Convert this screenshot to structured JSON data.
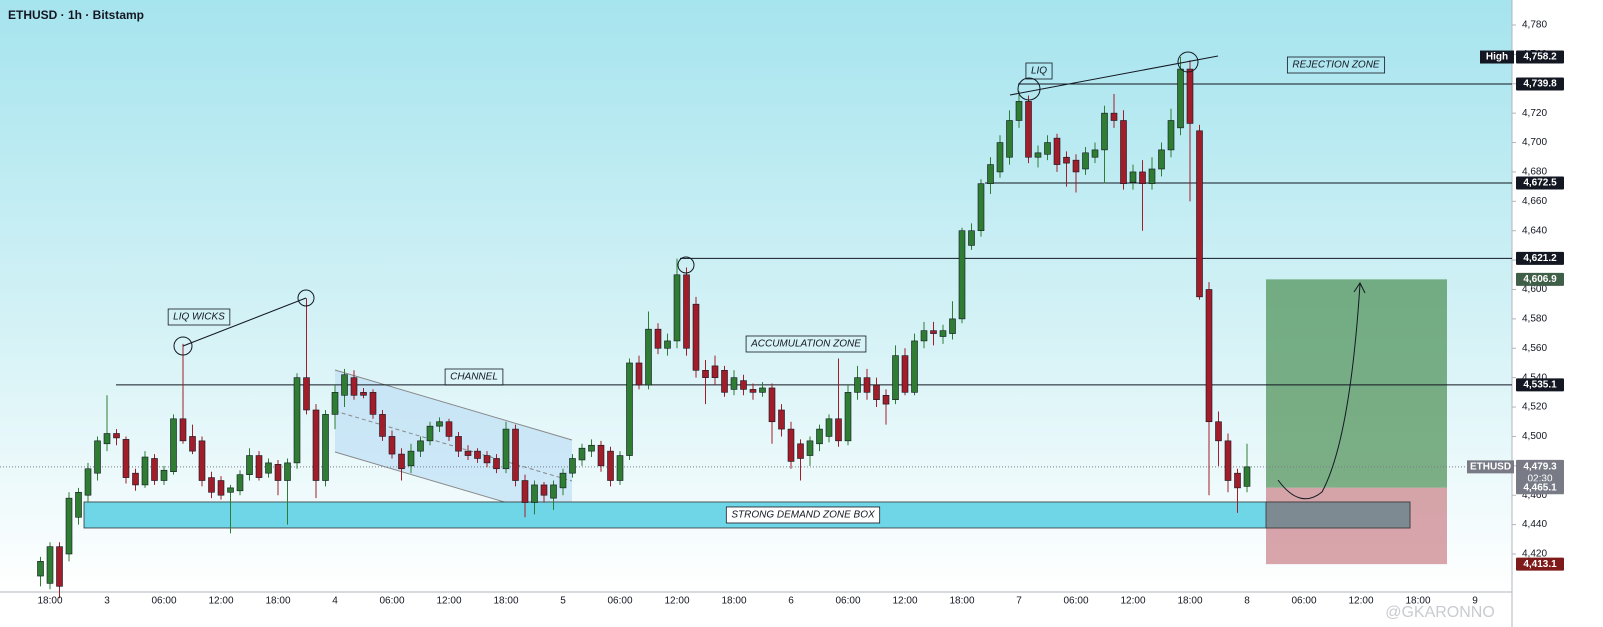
{
  "chart_data": {
    "type": "candlestick",
    "title": "ETHUSD · 1h · Bitstamp",
    "up_color": "#2e7d32",
    "down_color": "#a11d2a",
    "categories": [
      null,
      "18:00",
      null,
      null,
      null,
      null,
      null,
      "3",
      null,
      null,
      null,
      null,
      null,
      "06:00",
      null,
      null,
      null,
      null,
      null,
      "12:00",
      null,
      null,
      null,
      null,
      null,
      "18:00",
      null,
      null,
      null,
      null,
      null,
      "4",
      null,
      null,
      null,
      null,
      null,
      "06:00",
      null,
      null,
      null,
      null,
      null,
      "12:00",
      null,
      null,
      null,
      null,
      null,
      "18:00",
      null,
      null,
      null,
      null,
      null,
      "5",
      null,
      null,
      null,
      null,
      null,
      "06:00",
      null,
      null,
      null,
      null,
      null,
      "12:00",
      null,
      null,
      null,
      null,
      null,
      "18:00",
      null,
      null,
      null,
      null,
      null,
      "6",
      null,
      null,
      null,
      null,
      null,
      "06:00",
      null,
      null,
      null,
      null,
      null,
      "12:00",
      null,
      null,
      null,
      null,
      null,
      "18:00",
      null,
      null,
      null,
      null,
      null,
      "7",
      null,
      null,
      null,
      null,
      null,
      "06:00",
      null,
      null,
      null,
      null,
      null,
      "12:00",
      null,
      null,
      null,
      null,
      null,
      "18:00",
      null,
      null,
      null,
      null,
      null,
      "8",
      null,
      null,
      null,
      null,
      null,
      "06:00",
      null,
      null,
      null,
      null,
      null,
      "12:00",
      null,
      null,
      null,
      null,
      null,
      "18:00",
      null,
      null,
      null,
      null,
      null,
      "9",
      null,
      null,
      null
    ],
    "open": [
      4405,
      4400,
      4425,
      4420,
      4445,
      4460,
      4475,
      4495,
      4502,
      4498,
      4475,
      4467,
      4485,
      4470,
      4476,
      4512,
      4500,
      4497,
      4472,
      4470,
      4462,
      4463,
      4474,
      4487,
      4475,
      4481,
      4470,
      4482,
      4540,
      4518,
      4470,
      4515,
      4528,
      4540,
      4530,
      4530,
      4515,
      4500,
      4488,
      4480,
      4490,
      4497,
      4507,
      4510,
      4500,
      4490,
      4490,
      4487,
      4485,
      4478,
      4505,
      4470,
      4455,
      4467,
      4458,
      4465,
      4475,
      4484,
      4490,
      4494,
      4490,
      4470,
      4487,
      4550,
      4535,
      4573,
      4560,
      4565,
      4610,
      4590,
      4545,
      4548,
      4545,
      4532,
      4538,
      4532,
      4530,
      4533,
      4518,
      4505,
      4495,
      4487,
      4495,
      4500,
      4512,
      4497,
      4530,
      4540,
      4535,
      4528,
      4525,
      4555,
      4530,
      4565,
      4572,
      4568,
      4570,
      4580,
      4630,
      4640,
      4672,
      4680,
      4690,
      4715,
      4728,
      4690,
      4692,
      4703,
      4690,
      4688,
      4682,
      4690,
      4695,
      4720,
      4715,
      4673,
      4680,
      4672,
      4682,
      4695,
      4710,
      4750,
      4708,
      4600,
      4510,
      4497,
      4475,
      4466,
      null,
      null,
      null,
      null,
      null,
      null,
      null,
      null,
      null,
      null,
      null,
      null,
      null,
      null,
      null,
      null,
      null,
      null,
      null,
      null,
      null,
      null,
      null,
      null,
      null,
      null,
      null
    ],
    "high": [
      4418,
      4428,
      4428,
      4462,
      4465,
      4482,
      4500,
      4528,
      4505,
      4500,
      4478,
      4490,
      4488,
      4480,
      4515,
      4563,
      4508,
      4500,
      4476,
      4473,
      4467,
      4477,
      4492,
      4490,
      4485,
      4484,
      4485,
      4543,
      4594,
      4522,
      4518,
      4535,
      4546,
      4545,
      4533,
      4532,
      4518,
      4504,
      4492,
      4495,
      4500,
      4510,
      4513,
      4512,
      4503,
      4494,
      4492,
      4490,
      4488,
      4510,
      4508,
      4474,
      4470,
      4469,
      4470,
      4478,
      4488,
      4495,
      4498,
      4497,
      4493,
      4490,
      4553,
      4555,
      4585,
      4577,
      4570,
      4621,
      4615,
      4595,
      4552,
      4555,
      4548,
      4545,
      4542,
      4536,
      4537,
      4536,
      4522,
      4510,
      4498,
      4500,
      4508,
      4515,
      4553,
      4535,
      4548,
      4546,
      4540,
      4532,
      4562,
      4560,
      4570,
      4578,
      4578,
      4576,
      4592,
      4642,
      4645,
      4675,
      4690,
      4705,
      4722,
      4735,
      4732,
      4698,
      4705,
      4706,
      4694,
      4692,
      4697,
      4700,
      4725,
      4733,
      4722,
      4685,
      4688,
      4690,
      4700,
      4723,
      4758.2,
      4756,
      4712,
      4605,
      4517,
      4502,
      4478,
      4495,
      null,
      null,
      null,
      null,
      null,
      null,
      null,
      null,
      null,
      null,
      null,
      null,
      null,
      null,
      null,
      null,
      null,
      null,
      null,
      null,
      null,
      null,
      null,
      null,
      null,
      null,
      null
    ],
    "low": [
      4398,
      4396,
      4390,
      4415,
      4440,
      4455,
      4470,
      4490,
      4494,
      4468,
      4463,
      4465,
      4467,
      4467,
      4474,
      4495,
      4488,
      4466,
      4458,
      4457,
      4434,
      4460,
      4470,
      4470,
      4472,
      4460,
      4440,
      4478,
      4515,
      4458,
      4466,
      4505,
      4520,
      4525,
      4526,
      4512,
      4497,
      4485,
      4470,
      4475,
      4486,
      4494,
      4503,
      4497,
      4486,
      4484,
      4482,
      4479,
      4475,
      4475,
      4466,
      4445,
      4447,
      4455,
      4450,
      4460,
      4472,
      4480,
      4486,
      4476,
      4466,
      4467,
      4484,
      4532,
      4532,
      4556,
      4555,
      4560,
      4555,
      4540,
      4522,
      4535,
      4527,
      4528,
      4528,
      4525,
      4527,
      4495,
      4500,
      4478,
      4470,
      4480,
      4490,
      4496,
      4493,
      4494,
      4525,
      4525,
      4520,
      4508,
      4522,
      4528,
      4528,
      4560,
      4562,
      4563,
      4566,
      4577,
      4627,
      4636,
      4665,
      4676,
      4685,
      4710,
      4686,
      4683,
      4688,
      4680,
      4670,
      4666,
      4678,
      4686,
      4672,
      4710,
      4668,
      4668,
      4640,
      4668,
      4677,
      4690,
      4705,
      4660,
      4593,
      4460,
      4480,
      4462,
      4448,
      4462,
      null,
      null,
      null,
      null,
      null,
      null,
      null,
      null,
      null,
      null,
      null,
      null,
      null,
      null,
      null,
      null,
      null,
      null,
      null,
      null,
      null,
      null,
      null,
      null,
      null,
      null,
      null
    ],
    "close": [
      4415,
      4425,
      4398,
      4458,
      4462,
      4478,
      4497,
      4502,
      4499,
      4472,
      4467,
      4486,
      4470,
      4477,
      4512,
      4497,
      4490,
      4470,
      4462,
      4460,
      4465,
      4474,
      4487,
      4472,
      4482,
      4470,
      4482,
      4540,
      4518,
      4470,
      4515,
      4530,
      4542,
      4528,
      4528,
      4515,
      4500,
      4488,
      4478,
      4490,
      4497,
      4507,
      4510,
      4500,
      4490,
      4487,
      4485,
      4482,
      4478,
      4505,
      4470,
      4455,
      4467,
      4460,
      4467,
      4475,
      4485,
      4492,
      4494,
      4480,
      4470,
      4487,
      4550,
      4535,
      4573,
      4560,
      4565,
      4610,
      4560,
      4545,
      4540,
      4540,
      4530,
      4540,
      4532,
      4530,
      4533,
      4510,
      4505,
      4483,
      4485,
      4497,
      4505,
      4512,
      4497,
      4530,
      4540,
      4530,
      4525,
      4522,
      4555,
      4530,
      4565,
      4572,
      4570,
      4572,
      4580,
      4640,
      4640,
      4672,
      4685,
      4700,
      4715,
      4728,
      4690,
      4693,
      4700,
      4685,
      4686,
      4680,
      4693,
      4695,
      4720,
      4715,
      4672,
      4680,
      4672,
      4682,
      4695,
      4715,
      4750,
      4713,
      4595,
      4510,
      4497,
      4470,
      4465,
      4479.3,
      null,
      null,
      null,
      null,
      null,
      null,
      null,
      null,
      null,
      null,
      null,
      null,
      null,
      null,
      null,
      null,
      null,
      null,
      null,
      null,
      null,
      null,
      null,
      null,
      null,
      null,
      null
    ],
    "ylim": [
      4395.5,
      4797
    ],
    "yticks": [
      {
        "value": 4420,
        "label": "4,420"
      },
      {
        "value": 4440,
        "label": "4,440"
      },
      {
        "value": 4460,
        "label": "4,460"
      },
      {
        "value": 4480,
        "label": "4,480"
      },
      {
        "value": 4500,
        "label": "4,500"
      },
      {
        "value": 4520,
        "label": "4,520"
      },
      {
        "value": 4540,
        "label": "4,540"
      },
      {
        "value": 4560,
        "label": "4,560"
      },
      {
        "value": 4580,
        "label": "4,580"
      },
      {
        "value": 4600,
        "label": "4,600"
      },
      {
        "value": 4620,
        "label": "4,620"
      },
      {
        "value": 4640,
        "label": "4,640"
      },
      {
        "value": 4660,
        "label": "4,660"
      },
      {
        "value": 4680,
        "label": "4,680"
      },
      {
        "value": 4700,
        "label": "4,700"
      },
      {
        "value": 4720,
        "label": "4,720"
      },
      {
        "value": 4740,
        "label": "4,740"
      },
      {
        "value": 4760,
        "label": "4,760"
      },
      {
        "value": 4780,
        "label": "4,780"
      }
    ],
    "price_labels": [
      {
        "value": 4758.2,
        "label": "4,758.2",
        "tag": "High",
        "color": "#131722"
      },
      {
        "value": 4739.8,
        "label": "4,739.8",
        "color": "#131722",
        "line": true
      },
      {
        "value": 4672.5,
        "label": "4,672.5",
        "color": "#131722",
        "line": true
      },
      {
        "value": 4621.2,
        "label": "4,621.2",
        "color": "#131722",
        "line": true
      },
      {
        "value": 4606.9,
        "label": "4,606.9",
        "color": "#3f5f48"
      },
      {
        "value": 4535.1,
        "label": "4,535.1",
        "color": "#131722",
        "line": true
      },
      {
        "value": 4479.3,
        "label": "4,479.3",
        "tag": "ETHUSD",
        "countdown": "02:30",
        "color": "#787b86"
      },
      {
        "value": 4465.1,
        "label": "4,465.1",
        "color": "#787b86"
      },
      {
        "value": 4413.1,
        "label": "4,413.1",
        "color": "#7f1a1a"
      }
    ],
    "demand_zone": {
      "label": "STRONG DEMAND ZONE BOX",
      "from": 4437.7,
      "to": 4455.4
    },
    "annotations": [
      "LIQ WICKS",
      "CHANNEL",
      "ACCUMULATION ZONE",
      "LIQ",
      "REJECTION ZONE"
    ],
    "watermark": "@GKARONNO"
  }
}
